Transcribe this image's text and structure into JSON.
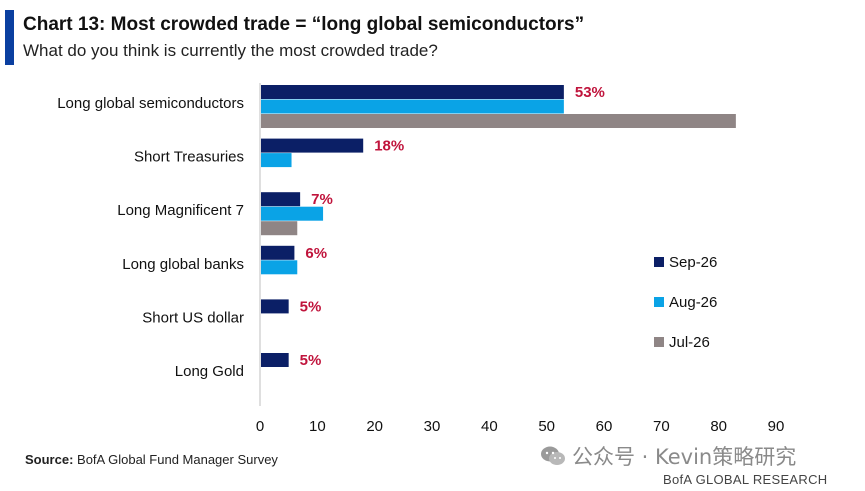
{
  "header": {
    "title": "Chart 13: Most crowded trade = “long global semiconductors”",
    "subtitle": "What do you think is currently the most crowded trade?"
  },
  "footer": {
    "source_label": "Source:",
    "source_text": "BofA Global Fund Manager Survey",
    "watermark": "公众号 · Kevin策略研究",
    "brand": "BofA GLOBAL RESEARCH"
  },
  "colors": {
    "sep": "#0b1f66",
    "aug": "#0aa3e6",
    "jul": "#8f8585",
    "label_red": "#c0143c",
    "accent": "#0a3fa0"
  },
  "chart_data": {
    "type": "bar",
    "orientation": "horizontal",
    "categories": [
      "Long global semiconductors",
      "Short Treasuries",
      "Long Magnificent 7",
      "Long global banks",
      "Short US dollar",
      "Long Gold"
    ],
    "series": [
      {
        "name": "Sep-26",
        "values": [
          53,
          18,
          7,
          6,
          5,
          5
        ]
      },
      {
        "name": "Aug-26",
        "values": [
          53,
          5.5,
          11,
          6.5,
          null,
          null
        ]
      },
      {
        "name": "Jul-26",
        "values": [
          83,
          null,
          6.5,
          null,
          null,
          null
        ]
      }
    ],
    "data_labels": [
      "53%",
      "18%",
      "7%",
      "6%",
      "5%",
      "5%"
    ],
    "xlim": [
      0,
      90
    ],
    "xticks": [
      0,
      10,
      20,
      30,
      40,
      50,
      60,
      70,
      80,
      90
    ],
    "grid": false,
    "legend_position": "right"
  }
}
